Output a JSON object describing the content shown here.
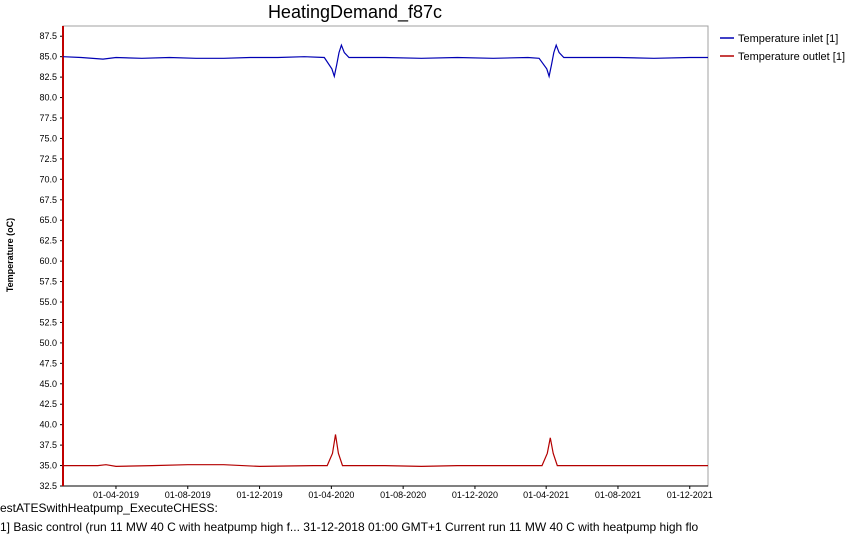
{
  "chart_data": {
    "type": "line",
    "title": "HeatingDemand_f87c",
    "ylabel": "Temperature (oC)",
    "xlabel": "",
    "ylim": [
      32.5,
      88.75
    ],
    "yticks": [
      "32.5",
      "35.0",
      "37.5",
      "40.0",
      "42.5",
      "45.0",
      "47.5",
      "50.0",
      "52.5",
      "55.0",
      "57.5",
      "60.0",
      "62.5",
      "65.0",
      "67.5",
      "70.0",
      "72.5",
      "75.0",
      "77.5",
      "80.0",
      "82.5",
      "85.0",
      "87.5"
    ],
    "xlim": [
      "2019-01-01",
      "2022-01-01"
    ],
    "xticks": [
      {
        "date": "2019-04-01",
        "label": "01-04-2019"
      },
      {
        "date": "2019-08-01",
        "label": "01-08-2019"
      },
      {
        "date": "2019-12-01",
        "label": "01-12-2019"
      },
      {
        "date": "2020-04-01",
        "label": "01-04-2020"
      },
      {
        "date": "2020-08-01",
        "label": "01-08-2020"
      },
      {
        "date": "2020-12-01",
        "label": "01-12-2020"
      },
      {
        "date": "2021-04-01",
        "label": "01-04-2021"
      },
      {
        "date": "2021-08-01",
        "label": "01-08-2021"
      },
      {
        "date": "2021-12-01",
        "label": "01-12-2021"
      }
    ],
    "grid": true,
    "legend_position": "right",
    "series": [
      {
        "name": "Temperature inlet [1]",
        "color": "#0000b4",
        "points": [
          [
            "2019-01-01",
            85.0
          ],
          [
            "2019-02-01",
            84.9
          ],
          [
            "2019-03-10",
            84.7
          ],
          [
            "2019-04-01",
            84.9
          ],
          [
            "2019-05-15",
            84.8
          ],
          [
            "2019-07-01",
            84.9
          ],
          [
            "2019-08-15",
            84.8
          ],
          [
            "2019-10-01",
            84.8
          ],
          [
            "2019-11-15",
            84.9
          ],
          [
            "2020-01-01",
            84.9
          ],
          [
            "2020-02-15",
            85.0
          ],
          [
            "2020-03-20",
            84.9
          ],
          [
            "2020-04-02",
            83.5
          ],
          [
            "2020-04-06",
            82.6
          ],
          [
            "2020-04-10",
            84.0
          ],
          [
            "2020-04-14",
            85.5
          ],
          [
            "2020-04-18",
            86.4
          ],
          [
            "2020-04-23",
            85.5
          ],
          [
            "2020-05-01",
            84.9
          ],
          [
            "2020-07-01",
            84.9
          ],
          [
            "2020-09-01",
            84.8
          ],
          [
            "2020-11-01",
            84.9
          ],
          [
            "2021-01-01",
            84.8
          ],
          [
            "2021-03-01",
            84.9
          ],
          [
            "2021-03-20",
            84.8
          ],
          [
            "2021-04-02",
            83.5
          ],
          [
            "2021-04-06",
            82.6
          ],
          [
            "2021-04-10",
            84.0
          ],
          [
            "2021-04-14",
            85.5
          ],
          [
            "2021-04-18",
            86.4
          ],
          [
            "2021-04-23",
            85.5
          ],
          [
            "2021-05-01",
            84.9
          ],
          [
            "2021-08-01",
            84.9
          ],
          [
            "2021-10-01",
            84.8
          ],
          [
            "2021-12-01",
            84.9
          ],
          [
            "2022-01-01",
            84.9
          ]
        ]
      },
      {
        "name": "Temperature outlet [1]",
        "color": "#b40000",
        "points": [
          [
            "2019-01-01",
            35.0
          ],
          [
            "2019-03-01",
            35.0
          ],
          [
            "2019-03-15",
            35.1
          ],
          [
            "2019-04-01",
            34.9
          ],
          [
            "2019-06-01",
            35.0
          ],
          [
            "2019-08-01",
            35.1
          ],
          [
            "2019-10-01",
            35.1
          ],
          [
            "2019-12-01",
            34.9
          ],
          [
            "2020-03-01",
            35.0
          ],
          [
            "2020-03-25",
            35.0
          ],
          [
            "2020-04-03",
            36.5
          ],
          [
            "2020-04-08",
            38.8
          ],
          [
            "2020-04-13",
            36.5
          ],
          [
            "2020-04-20",
            35.0
          ],
          [
            "2020-07-01",
            35.0
          ],
          [
            "2020-09-01",
            34.9
          ],
          [
            "2020-11-01",
            35.0
          ],
          [
            "2021-01-01",
            35.0
          ],
          [
            "2021-03-25",
            35.0
          ],
          [
            "2021-04-03",
            36.5
          ],
          [
            "2021-04-08",
            38.4
          ],
          [
            "2021-04-13",
            36.5
          ],
          [
            "2021-04-20",
            35.0
          ],
          [
            "2021-08-01",
            35.0
          ],
          [
            "2021-12-01",
            35.0
          ],
          [
            "2022-01-01",
            35.0
          ]
        ]
      }
    ]
  },
  "footer": {
    "line1": "estATESwithHeatpump_ExecuteCHESS:",
    "line2": "1] Basic control (run 11 MW 40 C with heatpump high f... 31-12-2018 01:00 GMT+1 Current run 11 MW 40 C with heatpump high flo"
  }
}
